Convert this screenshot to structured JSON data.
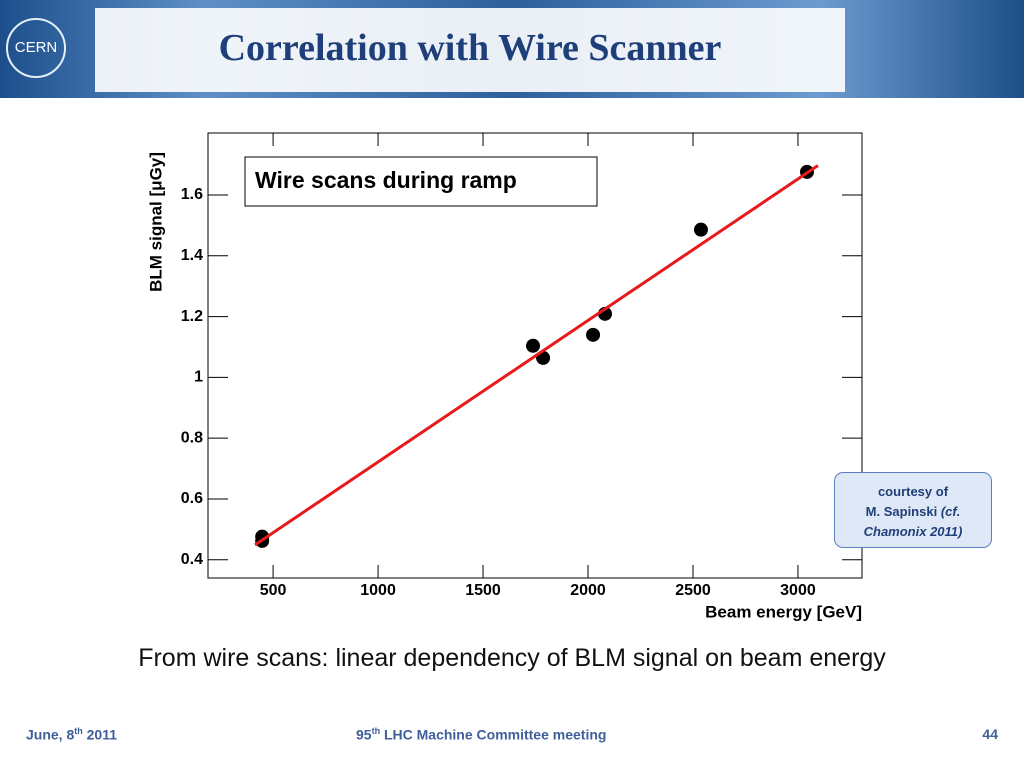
{
  "header": {
    "logo": "CERN",
    "title": "Correlation with Wire Scanner"
  },
  "chart_data": {
    "type": "scatter",
    "xlabel": "Beam energy [GeV]",
    "ylabel": "BLM signal [μGy]",
    "annotation": "Wire scans during ramp",
    "xlim": [
      190,
      3305
    ],
    "xticks": [
      500,
      1000,
      1500,
      2000,
      2500,
      3000
    ],
    "ylim": [
      0.34,
      1.804
    ],
    "yticks": [
      0.4,
      0.6,
      0.8,
      1,
      1.2,
      1.4,
      1.6
    ],
    "series": [
      {
        "type": "scatter",
        "color": "#000000",
        "x": [
          448,
          448,
          1738,
          1786,
          2024,
          2081,
          2538,
          3043
        ],
        "values": [
          0.476,
          0.462,
          1.104,
          1.064,
          1.14,
          1.209,
          1.486,
          1.676
        ]
      },
      {
        "type": "line",
        "color": "#e8191b",
        "x": [
          414,
          3095
        ],
        "values": [
          0.449,
          1.697
        ]
      }
    ]
  },
  "credit": {
    "line1": "courtesy of",
    "line2": "M. Sapinski",
    "line2b": "(cf.",
    "line3": "Chamonix 2011)"
  },
  "caption": "From wire scans: linear dependency of BLM signal on beam energy",
  "footer": {
    "date": "June, 8",
    "date_sup": "th",
    "date_year": " 2011",
    "event_num": "95",
    "event_sup": "th",
    "event": " LHC Machine Committee meeting",
    "page": "44"
  }
}
